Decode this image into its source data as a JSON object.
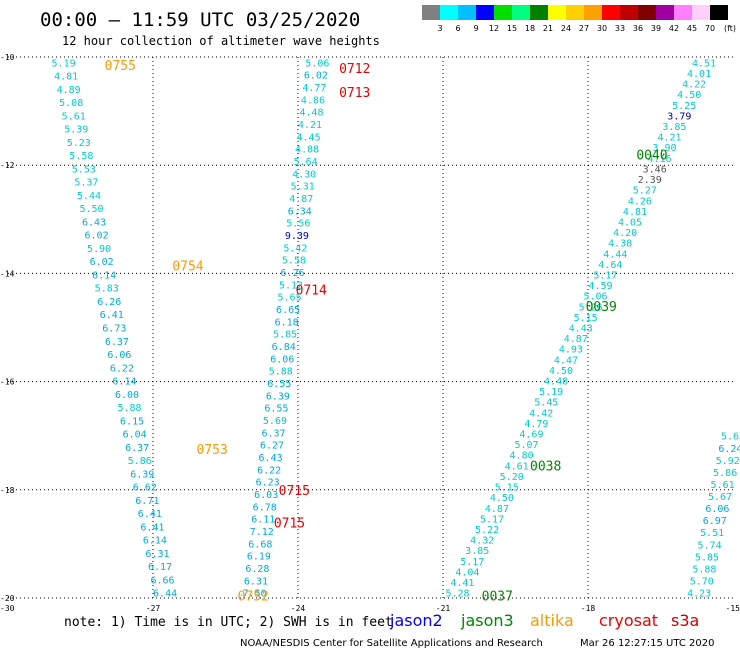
{
  "chart_data": {
    "type": "scatter",
    "title": "00:00 – 11:59 UTC 03/25/2020",
    "subtitle": "12 hour collection of altimeter wave heights",
    "xlim": [
      -30,
      -15
    ],
    "ylim": [
      -20,
      -10
    ],
    "x_ticks": [
      "-30",
      "-27",
      "-24",
      "-21",
      "-18",
      "-15"
    ],
    "y_ticks": [
      "-10",
      "-12",
      "-14",
      "-16",
      "-18",
      "-20"
    ],
    "grid": true,
    "colorbar": {
      "labels": [
        "3",
        "6",
        "9",
        "12",
        "15",
        "18",
        "21",
        "24",
        "27",
        "30",
        "33",
        "36",
        "39",
        "42",
        "45",
        "70"
      ],
      "unit": "(ft)",
      "colors": [
        "#808080",
        "#00ffff",
        "#00c0ff",
        "#0000ff",
        "#00e000",
        "#00ff80",
        "#008000",
        "#ffff00",
        "#ffd000",
        "#ffa000",
        "#ff0000",
        "#c00000",
        "#800000",
        "#a000a0",
        "#ff80ff",
        "#ffd0ff",
        "#000000"
      ]
    },
    "tracks": [
      {
        "id": "track-a",
        "start": [
          -28.85,
          -10.1
        ],
        "end": [
          -26.75,
          -19.9
        ],
        "values": [
          {
            "v": "5.19",
            "c": "#00cccc"
          },
          {
            "v": "4.81",
            "c": "#00cccc"
          },
          {
            "v": "4.89",
            "c": "#00cccc"
          },
          {
            "v": "5.08",
            "c": "#00cccc"
          },
          {
            "v": "5.61",
            "c": "#00cccc"
          },
          {
            "v": "5.39",
            "c": "#00cccc"
          },
          {
            "v": "5.23",
            "c": "#00cccc"
          },
          {
            "v": "5.58",
            "c": "#00cccc"
          },
          {
            "v": "5.53",
            "c": "#00cccc"
          },
          {
            "v": "5.37",
            "c": "#00cccc"
          },
          {
            "v": "5.44",
            "c": "#00cccc"
          },
          {
            "v": "5.50",
            "c": "#00cccc"
          },
          {
            "v": "6.43",
            "c": "#00aadd"
          },
          {
            "v": "6.02",
            "c": "#00aadd"
          },
          {
            "v": "5.90",
            "c": "#00cccc"
          },
          {
            "v": "6.02",
            "c": "#00aadd"
          },
          {
            "v": "6.14",
            "c": "#00aadd"
          },
          {
            "v": "5.83",
            "c": "#00cccc"
          },
          {
            "v": "6.26",
            "c": "#00aadd"
          },
          {
            "v": "6.41",
            "c": "#00aadd"
          },
          {
            "v": "6.73",
            "c": "#00aadd"
          },
          {
            "v": "6.37",
            "c": "#00aadd"
          },
          {
            "v": "6.06",
            "c": "#00aadd"
          },
          {
            "v": "6.22",
            "c": "#00aadd"
          },
          {
            "v": "6.14",
            "c": "#00aadd"
          },
          {
            "v": "6.00",
            "c": "#00aadd"
          },
          {
            "v": "5.88",
            "c": "#00cccc"
          },
          {
            "v": "6.15",
            "c": "#00aadd"
          },
          {
            "v": "6.04",
            "c": "#00aadd"
          },
          {
            "v": "6.37",
            "c": "#00aadd"
          },
          {
            "v": "5.86",
            "c": "#00cccc"
          },
          {
            "v": "6.39",
            "c": "#00aadd"
          },
          {
            "v": "6.62",
            "c": "#00aadd"
          },
          {
            "v": "6.71",
            "c": "#00aadd"
          },
          {
            "v": "6.41",
            "c": "#00aadd"
          },
          {
            "v": "6.41",
            "c": "#00aadd"
          },
          {
            "v": "6.14",
            "c": "#00aadd"
          },
          {
            "v": "6.31",
            "c": "#00aadd"
          },
          {
            "v": "6.17",
            "c": "#00aadd"
          },
          {
            "v": "6.66",
            "c": "#00aadd"
          },
          {
            "v": "6.44",
            "c": "#00aadd"
          }
        ]
      },
      {
        "id": "track-b",
        "start": [
          -23.6,
          -10.1
        ],
        "end": [
          -24.9,
          -19.9
        ],
        "values": [
          {
            "v": "5.06",
            "c": "#00cccc"
          },
          {
            "v": "6.02",
            "c": "#00aadd"
          },
          {
            "v": "4.77",
            "c": "#00cccc"
          },
          {
            "v": "4.86",
            "c": "#00cccc"
          },
          {
            "v": "4.48",
            "c": "#00cccc"
          },
          {
            "v": "4.21",
            "c": "#00cccc"
          },
          {
            "v": "4.45",
            "c": "#00cccc"
          },
          {
            "v": "4.88",
            "c": "#00cccc"
          },
          {
            "v": "5.64",
            "c": "#00cccc"
          },
          {
            "v": "4.30",
            "c": "#00cccc"
          },
          {
            "v": "5.31",
            "c": "#00cccc"
          },
          {
            "v": "4.87",
            "c": "#00cccc"
          },
          {
            "v": "6.34",
            "c": "#00aadd"
          },
          {
            "v": "5.56",
            "c": "#00cccc"
          },
          {
            "v": "9.39",
            "c": "#0000cc"
          },
          {
            "v": "5.42",
            "c": "#00cccc"
          },
          {
            "v": "5.58",
            "c": "#00cccc"
          },
          {
            "v": "6.26",
            "c": "#00aadd"
          },
          {
            "v": "5.12",
            "c": "#00cccc"
          },
          {
            "v": "5.65",
            "c": "#00cccc"
          },
          {
            "v": "6.65",
            "c": "#00aadd"
          },
          {
            "v": "6.18",
            "c": "#00aadd"
          },
          {
            "v": "5.85",
            "c": "#00cccc"
          },
          {
            "v": "6.84",
            "c": "#00aadd"
          },
          {
            "v": "6.06",
            "c": "#00aadd"
          },
          {
            "v": "5.88",
            "c": "#00cccc"
          },
          {
            "v": "6.55",
            "c": "#00aadd"
          },
          {
            "v": "6.39",
            "c": "#00aadd"
          },
          {
            "v": "6.55",
            "c": "#00aadd"
          },
          {
            "v": "5.69",
            "c": "#00cccc"
          },
          {
            "v": "6.37",
            "c": "#00aadd"
          },
          {
            "v": "6.27",
            "c": "#00aadd"
          },
          {
            "v": "6.43",
            "c": "#00aadd"
          },
          {
            "v": "6.22",
            "c": "#00aadd"
          },
          {
            "v": "6.23",
            "c": "#00aadd"
          },
          {
            "v": "6.03",
            "c": "#00aadd"
          },
          {
            "v": "6.78",
            "c": "#00aadd"
          },
          {
            "v": "6.11",
            "c": "#00aadd"
          },
          {
            "v": "7.12",
            "c": "#00aadd"
          },
          {
            "v": "6.68",
            "c": "#00aadd"
          },
          {
            "v": "6.19",
            "c": "#00aadd"
          },
          {
            "v": "6.28",
            "c": "#00aadd"
          },
          {
            "v": "6.31",
            "c": "#00aadd"
          },
          {
            "v": "7.50",
            "c": "#00aadd"
          }
        ]
      },
      {
        "id": "track-c",
        "start": [
          -15.6,
          -10.1
        ],
        "end": [
          -20.7,
          -19.9
        ],
        "values": [
          {
            "v": "4.51",
            "c": "#00cccc"
          },
          {
            "v": "4.01",
            "c": "#00cccc"
          },
          {
            "v": "4.22",
            "c": "#00cccc"
          },
          {
            "v": "4.50",
            "c": "#00cccc"
          },
          {
            "v": "5.25",
            "c": "#00cccc"
          },
          {
            "v": "3.79",
            "c": "#0000aa"
          },
          {
            "v": "3.85",
            "c": "#00cccc"
          },
          {
            "v": "4.21",
            "c": "#00cccc"
          },
          {
            "v": "3.90",
            "c": "#00cccc"
          },
          {
            "v": "4.16",
            "c": "#00cccc"
          },
          {
            "v": "3.46",
            "c": "#555555"
          },
          {
            "v": "2.39",
            "c": "#555555"
          },
          {
            "v": "5.27",
            "c": "#00cccc"
          },
          {
            "v": "4.26",
            "c": "#00cccc"
          },
          {
            "v": "4.81",
            "c": "#00cccc"
          },
          {
            "v": "4.05",
            "c": "#00cccc"
          },
          {
            "v": "4.20",
            "c": "#00cccc"
          },
          {
            "v": "4.38",
            "c": "#00cccc"
          },
          {
            "v": "4.44",
            "c": "#00cccc"
          },
          {
            "v": "4.64",
            "c": "#00cccc"
          },
          {
            "v": "5.17",
            "c": "#00cccc"
          },
          {
            "v": "4.59",
            "c": "#00cccc"
          },
          {
            "v": "5.06",
            "c": "#00cccc"
          },
          {
            "v": "5.26",
            "c": "#00cccc"
          },
          {
            "v": "5.15",
            "c": "#00cccc"
          },
          {
            "v": "4.43",
            "c": "#00cccc"
          },
          {
            "v": "4.87",
            "c": "#00cccc"
          },
          {
            "v": "4.93",
            "c": "#00cccc"
          },
          {
            "v": "4.47",
            "c": "#00cccc"
          },
          {
            "v": "4.50",
            "c": "#00cccc"
          },
          {
            "v": "4.48",
            "c": "#00cccc"
          },
          {
            "v": "5.19",
            "c": "#00cccc"
          },
          {
            "v": "5.45",
            "c": "#00cccc"
          },
          {
            "v": "4.42",
            "c": "#00cccc"
          },
          {
            "v": "4.79",
            "c": "#00cccc"
          },
          {
            "v": "4.69",
            "c": "#00cccc"
          },
          {
            "v": "5.07",
            "c": "#00cccc"
          },
          {
            "v": "4.80",
            "c": "#00cccc"
          },
          {
            "v": "4.61",
            "c": "#00cccc"
          },
          {
            "v": "5.20",
            "c": "#00cccc"
          },
          {
            "v": "5.15",
            "c": "#00cccc"
          },
          {
            "v": "4.50",
            "c": "#00cccc"
          },
          {
            "v": "4.87",
            "c": "#00cccc"
          },
          {
            "v": "5.17",
            "c": "#00cccc"
          },
          {
            "v": "5.22",
            "c": "#00cccc"
          },
          {
            "v": "4.32",
            "c": "#00cccc"
          },
          {
            "v": "3.85",
            "c": "#00cccc"
          },
          {
            "v": "5.17",
            "c": "#00cccc"
          },
          {
            "v": "4.04",
            "c": "#00cccc"
          },
          {
            "v": "4.41",
            "c": "#00cccc"
          },
          {
            "v": "5.28",
            "c": "#00cccc"
          }
        ]
      },
      {
        "id": "track-d",
        "start": [
          -15.0,
          -17.0
        ],
        "end": [
          -15.7,
          -19.9
        ],
        "values": [
          {
            "v": "5.65",
            "c": "#00cccc"
          },
          {
            "v": "6.24",
            "c": "#00aadd"
          },
          {
            "v": "5.92",
            "c": "#00cccc"
          },
          {
            "v": "5.86",
            "c": "#00cccc"
          },
          {
            "v": "5.61",
            "c": "#00cccc"
          },
          {
            "v": "5.67",
            "c": "#00cccc"
          },
          {
            "v": "6.06",
            "c": "#00aadd"
          },
          {
            "v": "6.97",
            "c": "#00aadd"
          },
          {
            "v": "5.51",
            "c": "#00cccc"
          },
          {
            "v": "5.74",
            "c": "#00cccc"
          },
          {
            "v": "5.85",
            "c": "#00cccc"
          },
          {
            "v": "5.88",
            "c": "#00cccc"
          },
          {
            "v": "5.70",
            "c": "#00cccc"
          },
          {
            "v": "4.23",
            "c": "#00cccc"
          }
        ]
      }
    ],
    "pass_times": [
      {
        "label": "0755",
        "x": -28.0,
        "y": -10.15,
        "color": "#ff9900"
      },
      {
        "label": "0754",
        "x": -26.6,
        "y": -13.85,
        "color": "#ff9900"
      },
      {
        "label": "0753",
        "x": -26.1,
        "y": -17.25,
        "color": "#ff9900"
      },
      {
        "label": "0752",
        "x": -25.25,
        "y": -19.95,
        "color": "#ff9900"
      },
      {
        "label": "0712",
        "x": -23.15,
        "y": -10.2,
        "color": "#ee0000"
      },
      {
        "label": "0713",
        "x": -23.15,
        "y": -10.65,
        "color": "#ee0000"
      },
      {
        "label": "0714",
        "x": -24.05,
        "y": -14.3,
        "color": "#ee0000"
      },
      {
        "label": "0715",
        "x": -24.4,
        "y": -18.0,
        "color": "#ee0000"
      },
      {
        "label": "0715",
        "x": -24.5,
        "y": -18.6,
        "color": "#ee0000"
      },
      {
        "label": "0040",
        "x": -17.0,
        "y": -11.8,
        "color": "#008800"
      },
      {
        "label": "0039",
        "x": -18.05,
        "y": -14.6,
        "color": "#008800"
      },
      {
        "label": "0038",
        "x": -19.2,
        "y": -17.55,
        "color": "#008800"
      },
      {
        "label": "0037",
        "x": -20.2,
        "y": -19.95,
        "color": "#008800"
      }
    ]
  },
  "note": "note: 1) Time is in UTC; 2) SWH is in feet",
  "satellites": [
    {
      "name": "jason2",
      "color": "#0000ff"
    },
    {
      "name": "jason3",
      "color": "#008800"
    },
    {
      "name": "altika",
      "color": "#ff9900"
    },
    {
      "name": "cryosat",
      "color": "#ee0000"
    },
    {
      "name": "s3a",
      "color": "#cc0000"
    }
  ],
  "credit": "NOAA/NESDIS Center for Satellite Applications and Research",
  "timestamp": "Mar 26 12:27:15 UTC 2020"
}
